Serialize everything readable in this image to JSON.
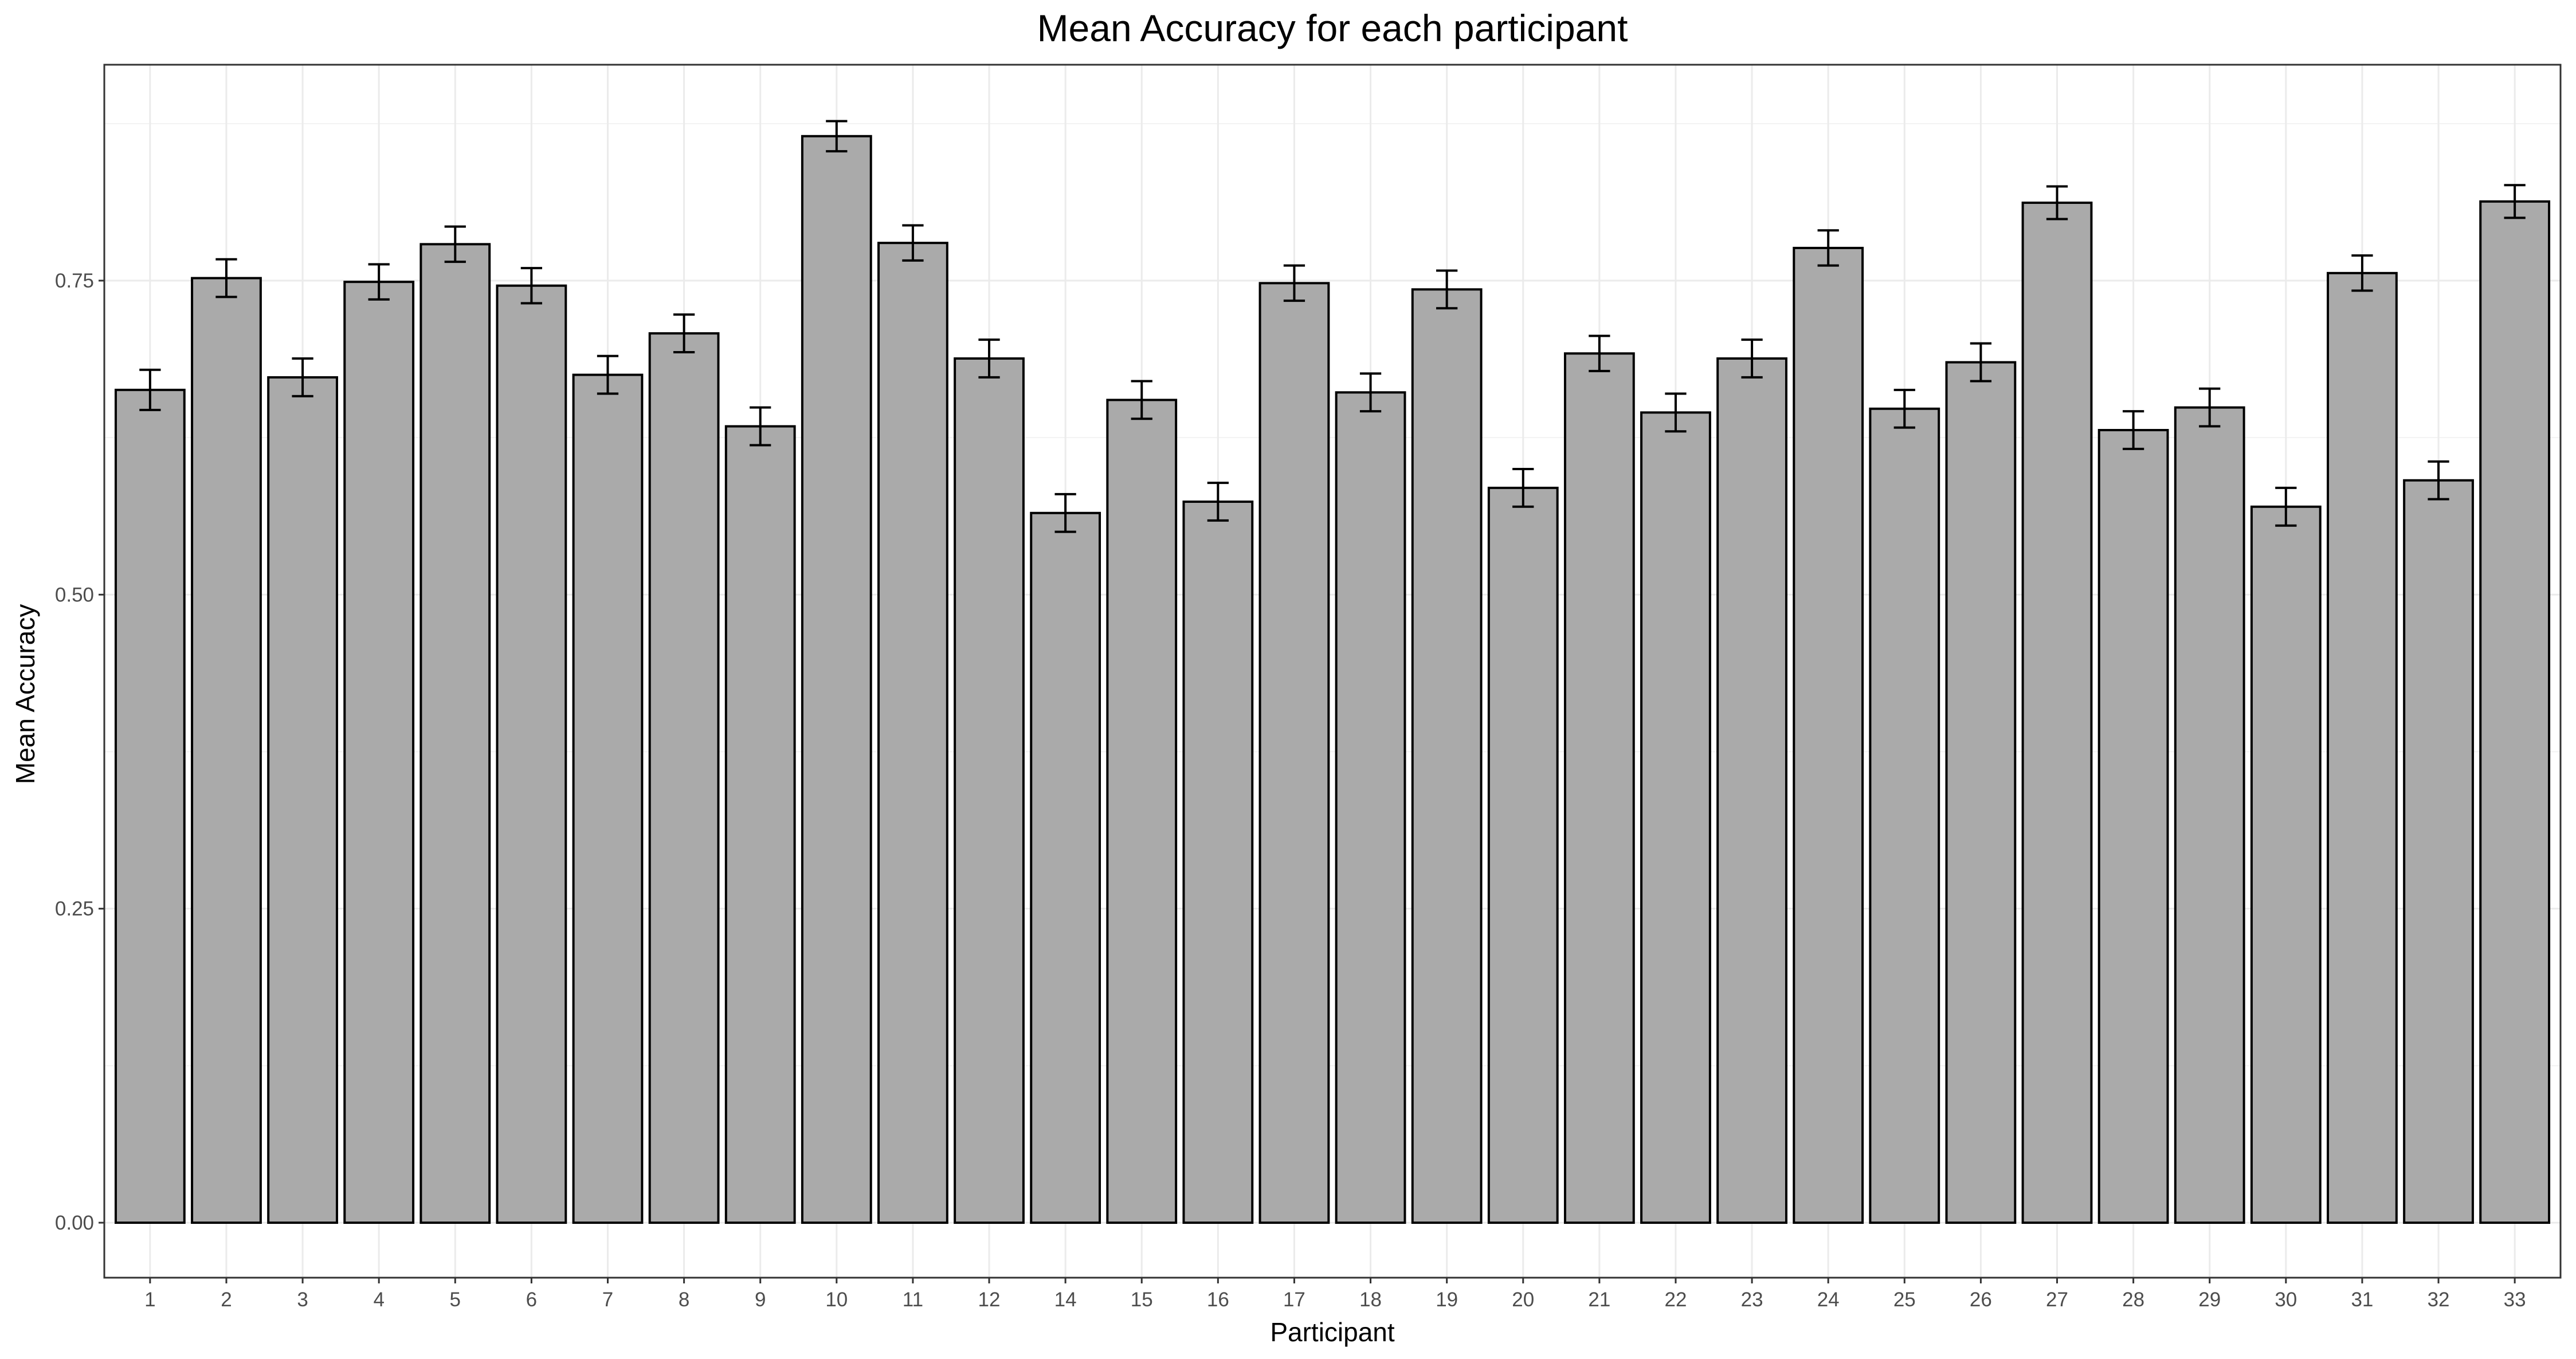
{
  "chart_data": {
    "type": "bar",
    "title": "Mean Accuracy for each participant",
    "xlabel": "Participant",
    "ylabel": "Mean Accuracy",
    "ylim": [
      0,
      0.92
    ],
    "yticks": [
      0.0,
      0.25,
      0.5,
      0.75
    ],
    "ytick_labels": [
      "0.00",
      "0.25",
      "0.50",
      "0.75"
    ],
    "grid": true,
    "bar_color": "#aaaaaa",
    "categories": [
      "1",
      "2",
      "3",
      "4",
      "5",
      "6",
      "7",
      "8",
      "9",
      "10",
      "11",
      "12",
      "14",
      "15",
      "16",
      "17",
      "18",
      "19",
      "20",
      "21",
      "22",
      "23",
      "24",
      "25",
      "26",
      "27",
      "28",
      "29",
      "30",
      "31",
      "32",
      "33"
    ],
    "values": [
      0.663,
      0.752,
      0.673,
      0.749,
      0.779,
      0.746,
      0.675,
      0.708,
      0.634,
      0.865,
      0.78,
      0.688,
      0.565,
      0.655,
      0.574,
      0.748,
      0.661,
      0.743,
      0.585,
      0.692,
      0.645,
      0.688,
      0.776,
      0.648,
      0.685,
      0.812,
      0.631,
      0.649,
      0.57,
      0.756,
      0.591,
      0.813
    ],
    "error_low": [
      0.647,
      0.737,
      0.658,
      0.735,
      0.765,
      0.732,
      0.66,
      0.693,
      0.619,
      0.853,
      0.766,
      0.673,
      0.55,
      0.64,
      0.559,
      0.734,
      0.646,
      0.728,
      0.57,
      0.678,
      0.63,
      0.673,
      0.762,
      0.633,
      0.67,
      0.799,
      0.616,
      0.634,
      0.555,
      0.742,
      0.576,
      0.8
    ],
    "error_high": [
      0.679,
      0.767,
      0.688,
      0.763,
      0.793,
      0.76,
      0.69,
      0.723,
      0.649,
      0.877,
      0.794,
      0.703,
      0.58,
      0.67,
      0.589,
      0.762,
      0.676,
      0.758,
      0.6,
      0.706,
      0.66,
      0.703,
      0.79,
      0.663,
      0.7,
      0.825,
      0.646,
      0.664,
      0.585,
      0.77,
      0.606,
      0.826
    ]
  }
}
